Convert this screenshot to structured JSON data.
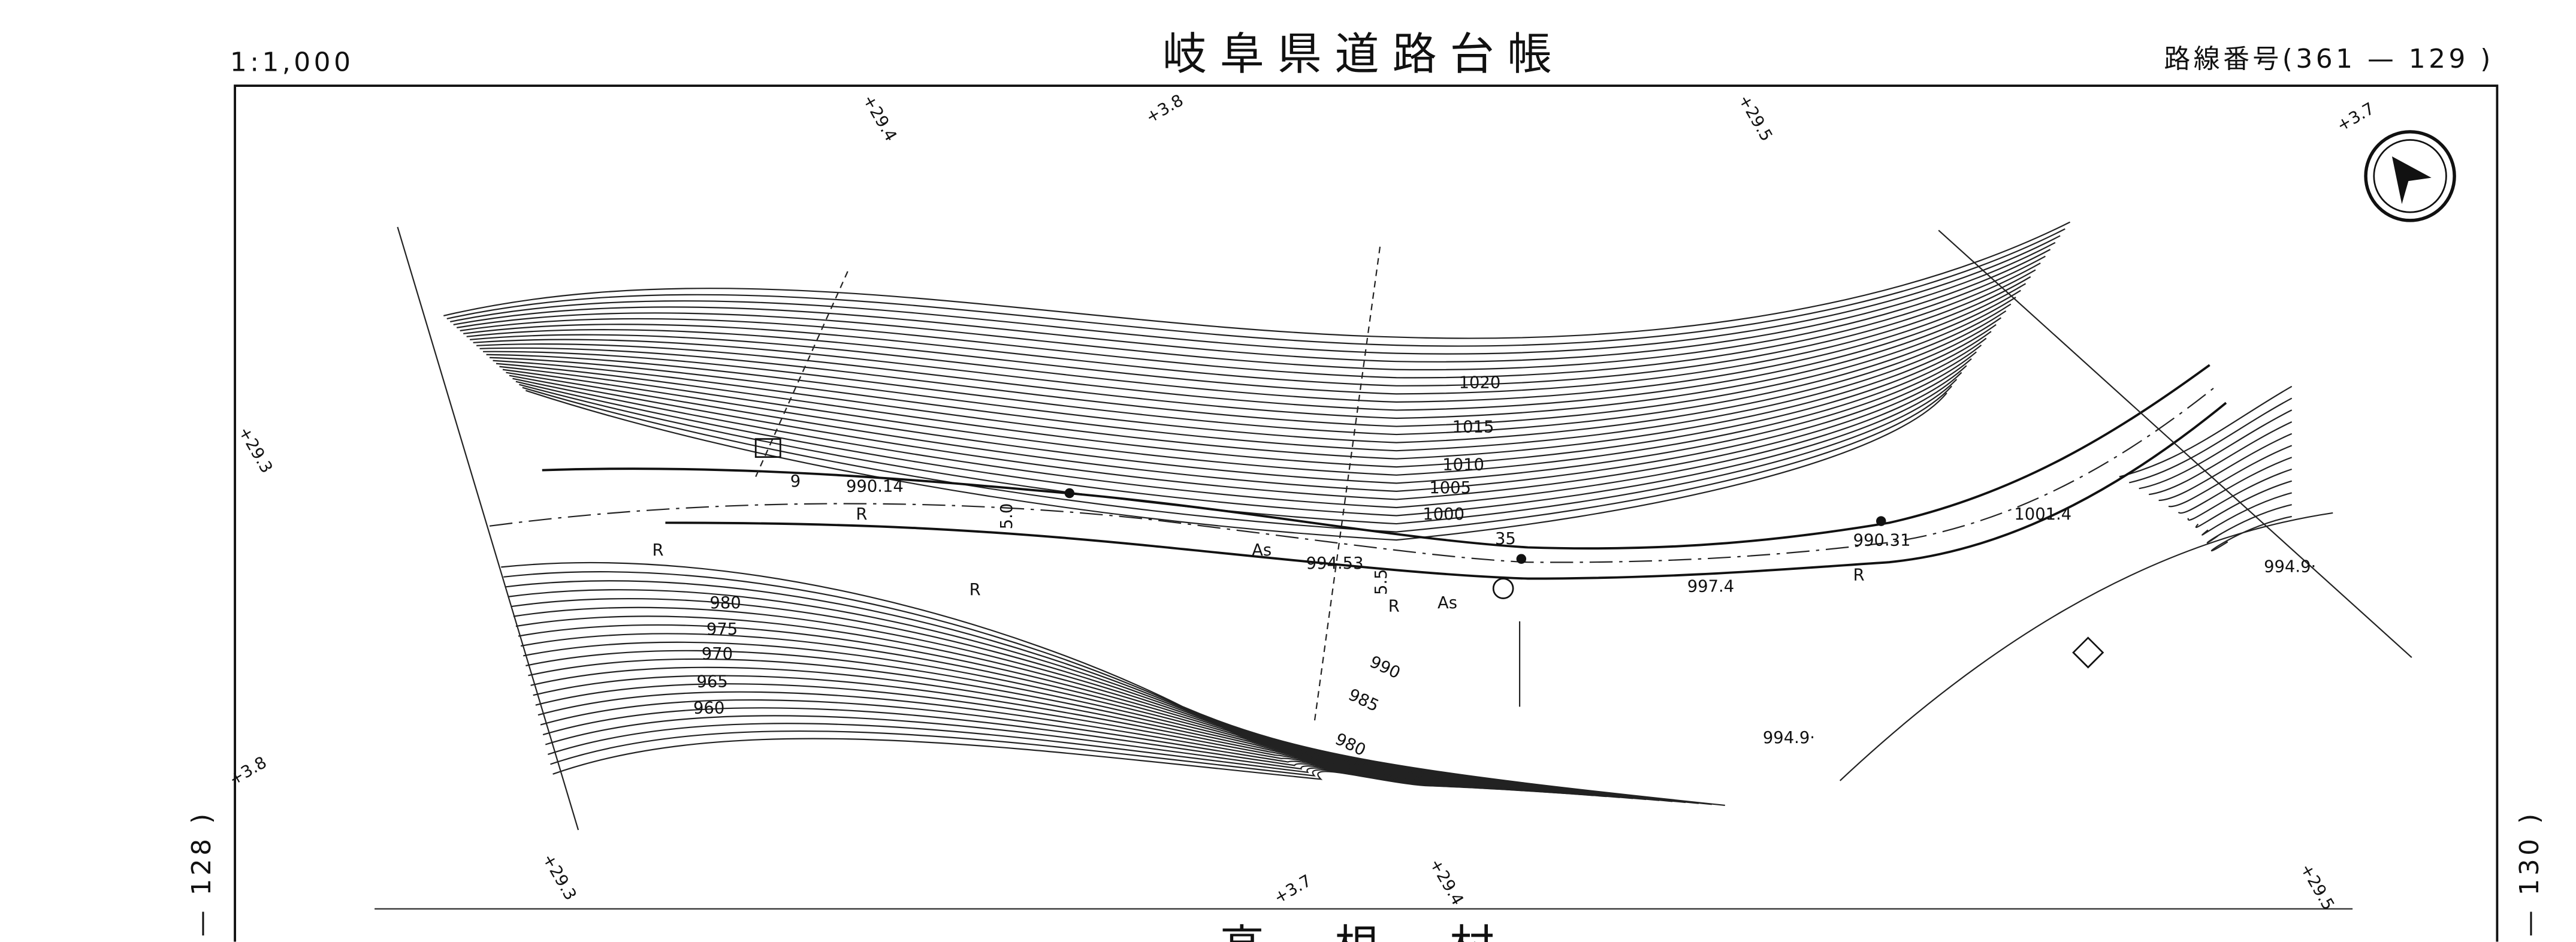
{
  "header": {
    "scale": "1:1,000",
    "title": "岐阜県道路台帳",
    "route_number": "路線番号(361 — 129 )"
  },
  "adjacent_sheets": {
    "left": "— 128 )",
    "right": "— 130 )"
  },
  "stations": [
    "+29.4",
    "+3.8",
    "+29.5",
    "+3.7",
    "+29.3",
    "+3.8",
    "+29.3",
    "+3.7",
    "+29.4",
    "+29.5"
  ],
  "contours": [
    "1020",
    "1015",
    "1010",
    "1005",
    "1000",
    "980",
    "975",
    "970",
    "965",
    "960",
    "990",
    "985",
    "980"
  ],
  "elevations": [
    "990.14",
    "994.53",
    "997.4",
    "990.31",
    "1001.4",
    "994.9·",
    "994.9·"
  ],
  "annotations": [
    "9",
    "35",
    "As",
    "As",
    "R",
    "R",
    "R",
    "R",
    "R",
    "5.0",
    "5.5"
  ],
  "footer": {
    "village": "高　根　村"
  }
}
